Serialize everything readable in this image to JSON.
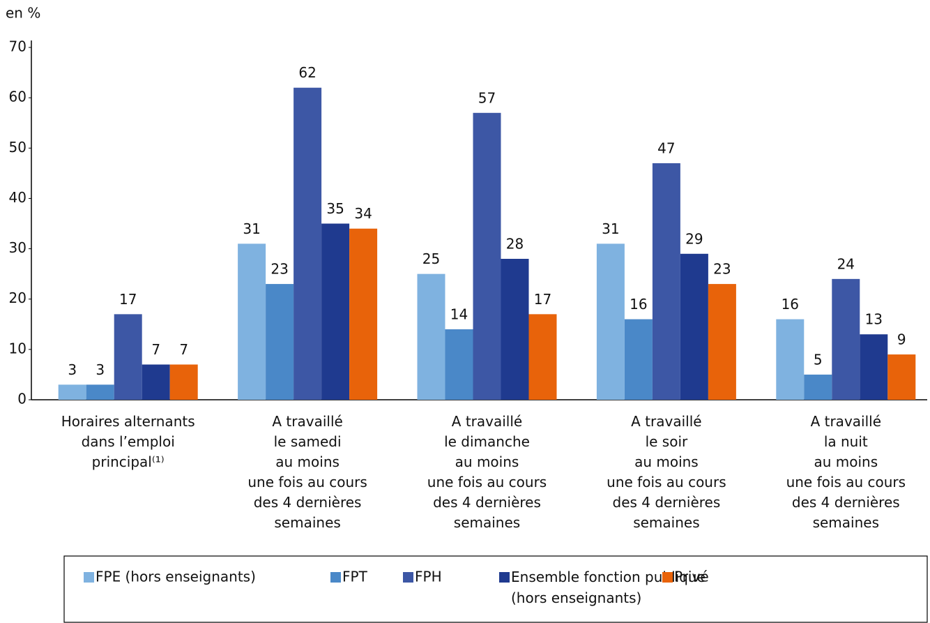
{
  "chart_data": {
    "type": "bar",
    "y_label": "en %",
    "categories": [
      "Horaires alternants\ndans l’emploi\nprincipal⁽¹⁾",
      "A travaillé\nle samedi\nau moins\nune fois au cours\ndes 4 dernières\nsemaines",
      "A travaillé\nle dimanche\nau moins\nune fois au cours\ndes 4 dernières\nsemaines",
      "A travaillé\nle soir\nau moins\nune fois au cours\ndes 4 dernières\nsemaines",
      "A travaillé\nla nuit\nau moins\nune fois au cours\ndes 4 dernières\nsemaines"
    ],
    "series": [
      {
        "name": "FPE (hors enseignants)",
        "color": "#7fb2e0",
        "values": [
          3,
          31,
          25,
          31,
          16
        ]
      },
      {
        "name": "FPT",
        "color": "#4a88c8",
        "values": [
          3,
          23,
          14,
          16,
          5
        ]
      },
      {
        "name": "FPH",
        "color": "#3d57a5",
        "values": [
          17,
          62,
          57,
          47,
          24
        ]
      },
      {
        "name": "Ensemble fonction publique\n(hors enseignants)",
        "color": "#1f3a8f",
        "values": [
          7,
          35,
          28,
          29,
          13
        ]
      },
      {
        "name": "Privé",
        "color": "#e8630a",
        "values": [
          7,
          34,
          17,
          23,
          9
        ]
      }
    ],
    "ylim": [
      0,
      70
    ],
    "yticks": [
      0,
      10,
      20,
      30,
      40,
      50,
      60,
      70
    ],
    "grid": false
  }
}
